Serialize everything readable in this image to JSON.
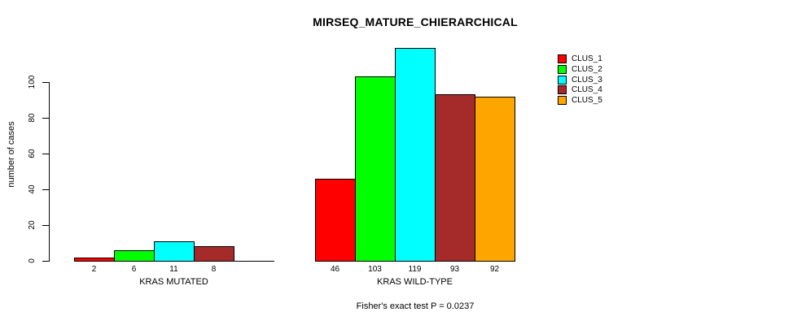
{
  "chart_data": {
    "type": "bar",
    "title": "MIRSEQ_MATURE_CHIERARCHICAL",
    "xlabel": "",
    "ylabel": "number of cases",
    "ylim": [
      0,
      120
    ],
    "yticks": [
      0,
      20,
      40,
      60,
      80,
      100
    ],
    "grid": false,
    "legend_position": "right",
    "categories": [
      "KRAS MUTATED",
      "KRAS WILD-TYPE"
    ],
    "series": [
      {
        "name": "CLUS_1",
        "color": "#ff0000",
        "values": [
          2,
          46
        ]
      },
      {
        "name": "CLUS_2",
        "color": "#00ff00",
        "values": [
          6,
          103
        ]
      },
      {
        "name": "CLUS_3",
        "color": "#00ffff",
        "values": [
          11,
          119
        ]
      },
      {
        "name": "CLUS_4",
        "color": "#a52a2a",
        "values": [
          8,
          93
        ]
      },
      {
        "name": "CLUS_5",
        "color": "#ffa500",
        "values": [
          0,
          92
        ]
      }
    ],
    "bar_value_labels": [
      [
        "2",
        "6",
        "11",
        "8",
        ""
      ],
      [
        "46",
        "103",
        "119",
        "93",
        "92"
      ]
    ],
    "annotation": "Fisher's exact test P = 0.0237"
  }
}
